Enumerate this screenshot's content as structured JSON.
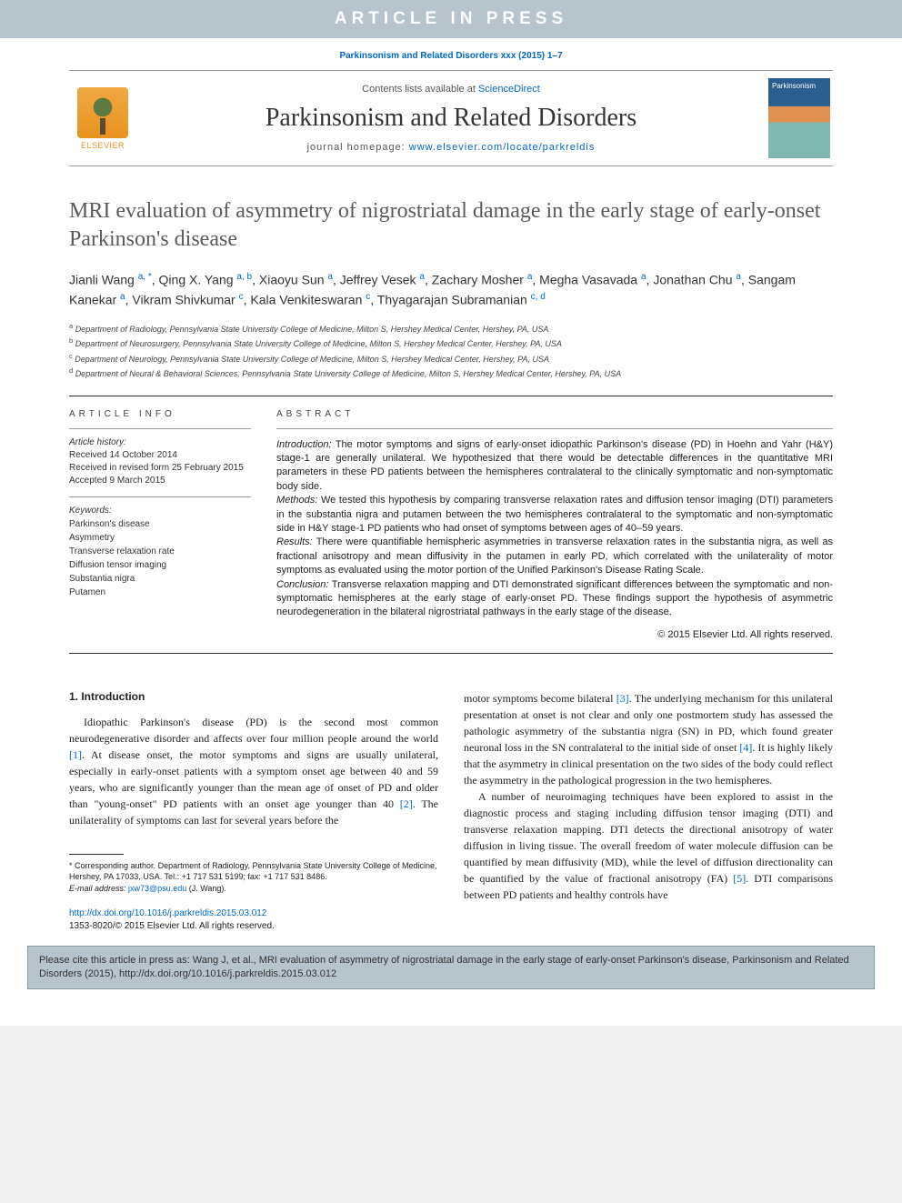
{
  "banner": "ARTICLE IN PRESS",
  "citation_top": "Parkinsonism and Related Disorders xxx (2015) 1–7",
  "header": {
    "publisher": "ELSEVIER",
    "contents_prefix": "Contents lists available at ",
    "contents_link": "ScienceDirect",
    "journal_title": "Parkinsonism and Related Disorders",
    "homepage_prefix": "journal homepage: ",
    "homepage_link": "www.elsevier.com/locate/parkreldis",
    "cover_label": "Parkinsonism"
  },
  "article": {
    "title": "MRI evaluation of asymmetry of nigrostriatal damage in the early stage of early-onset Parkinson's disease",
    "authors_html": "Jianli Wang <sup>a, *</sup>, Qing X. Yang <sup>a, b</sup>, Xiaoyu Sun <sup>a</sup>, Jeffrey Vesek <sup>a</sup>, Zachary Mosher <sup>a</sup>, Megha Vasavada <sup>a</sup>, Jonathan Chu <sup>a</sup>, Sangam Kanekar <sup>a</sup>, Vikram Shivkumar <sup>c</sup>, Kala Venkiteswaran <sup>c</sup>, Thyagarajan Subramanian <sup>c, d</sup>",
    "affiliations": [
      {
        "key": "a",
        "text": "Department of Radiology, Pennsylvania State University College of Medicine, Milton S, Hershey Medical Center, Hershey, PA, USA"
      },
      {
        "key": "b",
        "text": "Department of Neurosurgery, Pennsylvania State University College of Medicine, Milton S, Hershey Medical Center, Hershey, PA, USA"
      },
      {
        "key": "c",
        "text": "Department of Neurology, Pennsylvania State University College of Medicine, Milton S, Hershey Medical Center, Hershey, PA, USA"
      },
      {
        "key": "d",
        "text": "Department of Neural & Behavioral Sciences, Pennsylvania State University College of Medicine, Milton S, Hershey Medical Center, Hershey, PA, USA"
      }
    ]
  },
  "info": {
    "heading": "ARTICLE INFO",
    "history_label": "Article history:",
    "received": "Received 14 October 2014",
    "revised": "Received in revised form 25 February 2015",
    "accepted": "Accepted 9 March 2015",
    "keywords_label": "Keywords:",
    "keywords": [
      "Parkinson's disease",
      "Asymmetry",
      "Transverse relaxation rate",
      "Diffusion tensor imaging",
      "Substantia nigra",
      "Putamen"
    ]
  },
  "abstract": {
    "heading": "ABSTRACT",
    "intro_lead": "Introduction:",
    "intro": " The motor symptoms and signs of early-onset idiopathic Parkinson's disease (PD) in Hoehn and Yahr (H&Y) stage-1 are generally unilateral. We hypothesized that there would be detectable differences in the quantitative MRI parameters in these PD patients between the hemispheres contralateral to the clinically symptomatic and non-symptomatic body side.",
    "methods_lead": "Methods:",
    "methods": " We tested this hypothesis by comparing transverse relaxation rates and diffusion tensor imaging (DTI) parameters in the substantia nigra and putamen between the two hemispheres contralateral to the symptomatic and non-symptomatic side in H&Y stage-1 PD patients who had onset of symptoms between ages of 40–59 years.",
    "results_lead": "Results:",
    "results": " There were quantifiable hemispheric asymmetries in transverse relaxation rates in the substantia nigra, as well as fractional anisotropy and mean diffusivity in the putamen in early PD, which correlated with the unilaterality of motor symptoms as evaluated using the motor portion of the Unified Parkinson's Disease Rating Scale.",
    "conclusion_lead": "Conclusion:",
    "conclusion": " Transverse relaxation mapping and DTI demonstrated significant differences between the symptomatic and non-symptomatic hemispheres at the early stage of early-onset PD. These findings support the hypothesis of asymmetric neurodegeneration in the bilateral nigrostriatal pathways in the early stage of the disease.",
    "copyright": "© 2015 Elsevier Ltd. All rights reserved."
  },
  "body": {
    "sec1_heading": "1. Introduction",
    "col1_p1_a": "Idiopathic Parkinson's disease (PD) is the second most common neurodegenerative disorder and affects over four million people around the world ",
    "col1_p1_ref1": "[1]",
    "col1_p1_b": ". At disease onset, the motor symptoms and signs are usually unilateral, especially in early-onset patients with a symptom onset age between 40 and 59 years, who are significantly younger than the mean age of onset of PD and older than \"young-onset\" PD patients with an onset age younger than 40 ",
    "col1_p1_ref2": "[2]",
    "col1_p1_c": ". The unilaterality of symptoms can last for several years before the",
    "col2_p1_a": "motor symptoms become bilateral ",
    "col2_p1_ref3": "[3]",
    "col2_p1_b": ". The underlying mechanism for this unilateral presentation at onset is not clear and only one postmortem study has assessed the pathologic asymmetry of the substantia nigra (SN) in PD, which found greater neuronal loss in the SN contralateral to the initial side of onset ",
    "col2_p1_ref4": "[4]",
    "col2_p1_c": ". It is highly likely that the asymmetry in clinical presentation on the two sides of the body could reflect the asymmetry in the pathological progression in the two hemispheres.",
    "col2_p2_a": "A number of neuroimaging techniques have been explored to assist in the diagnostic process and staging including diffusion tensor imaging (DTI) and transverse relaxation mapping. DTI detects the directional anisotropy of water diffusion in living tissue. The overall freedom of water molecule diffusion can be quantified by mean diffusivity (MD), while the level of diffusion directionality can be quantified by the value of fractional anisotropy (FA) ",
    "col2_p2_ref5": "[5]",
    "col2_p2_b": ". DTI comparisons between PD patients and healthy controls have"
  },
  "footnote": {
    "corr": "* Corresponding author. Department of Radiology, Pennsylvania State University College of Medicine, Hershey, PA 17033, USA. Tel.: +1 717 531 5199; fax: +1 717 531 8486.",
    "email_label": "E-mail address: ",
    "email": "jxw73@psu.edu",
    "email_who": " (J. Wang)."
  },
  "doi": {
    "link": "http://dx.doi.org/10.1016/j.parkreldis.2015.03.012",
    "issn": "1353-8020/© 2015 Elsevier Ltd. All rights reserved."
  },
  "cite_box": "Please cite this article in press as: Wang J, et al., MRI evaluation of asymmetry of nigrostriatal damage in the early stage of early-onset Parkinson's disease, Parkinsonism and Related Disorders (2015), http://dx.doi.org/10.1016/j.parkreldis.2015.03.012"
}
